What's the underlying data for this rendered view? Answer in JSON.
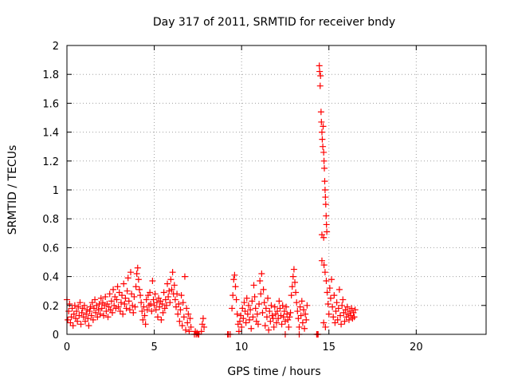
{
  "chart_data": {
    "type": "scatter",
    "title": "Day 317 of 2011, SRMTID for receiver bndy",
    "xlabel": "GPS time / hours",
    "ylabel": "SRMTID / TECUs",
    "xlim": [
      0,
      24
    ],
    "ylim": [
      0,
      2
    ],
    "xticks": [
      0,
      5,
      10,
      15,
      20
    ],
    "yticks": [
      0,
      0.2,
      0.4,
      0.6,
      0.8,
      1,
      1.2,
      1.4,
      1.6,
      1.8,
      2
    ],
    "x_tick_labels": [
      "0",
      "5",
      "10",
      "15",
      "20"
    ],
    "y_tick_labels": [
      "0",
      "0.2",
      "0.4",
      "0.6",
      "0.8",
      "1",
      "1.2",
      "1.4",
      "1.6",
      "1.8",
      "2"
    ],
    "grid": true,
    "marker": "+",
    "series": [
      {
        "name": "SRMTID",
        "color": "#ff0000",
        "points": [
          [
            0.0,
            0.24
          ],
          [
            0.05,
            0.1
          ],
          [
            0.1,
            0.16
          ],
          [
            0.15,
            0.21
          ],
          [
            0.2,
            0.08
          ],
          [
            0.25,
            0.12
          ],
          [
            0.3,
            0.18
          ],
          [
            0.35,
            0.06
          ],
          [
            0.4,
            0.14
          ],
          [
            0.45,
            0.2
          ],
          [
            0.5,
            0.11
          ],
          [
            0.55,
            0.16
          ],
          [
            0.6,
            0.09
          ],
          [
            0.65,
            0.19
          ],
          [
            0.7,
            0.13
          ],
          [
            0.75,
            0.22
          ],
          [
            0.8,
            0.07
          ],
          [
            0.85,
            0.15
          ],
          [
            0.9,
            0.18
          ],
          [
            0.95,
            0.12
          ],
          [
            1.0,
            0.2
          ],
          [
            1.05,
            0.09
          ],
          [
            1.1,
            0.14
          ],
          [
            1.15,
            0.17
          ],
          [
            1.2,
            0.11
          ],
          [
            1.25,
            0.06
          ],
          [
            1.3,
            0.16
          ],
          [
            1.35,
            0.19
          ],
          [
            1.4,
            0.13
          ],
          [
            1.45,
            0.22
          ],
          [
            1.5,
            0.1
          ],
          [
            1.55,
            0.18
          ],
          [
            1.6,
            0.24
          ],
          [
            1.65,
            0.15
          ],
          [
            1.7,
            0.2
          ],
          [
            1.75,
            0.12
          ],
          [
            1.8,
            0.17
          ],
          [
            1.85,
            0.21
          ],
          [
            1.9,
            0.14
          ],
          [
            1.95,
            0.25
          ],
          [
            2.0,
            0.18
          ],
          [
            2.05,
            0.22
          ],
          [
            2.1,
            0.13
          ],
          [
            2.15,
            0.2
          ],
          [
            2.2,
            0.26
          ],
          [
            2.25,
            0.16
          ],
          [
            2.3,
            0.21
          ],
          [
            2.35,
            0.12
          ],
          [
            2.4,
            0.19
          ],
          [
            2.45,
            0.28
          ],
          [
            2.5,
            0.17
          ],
          [
            2.55,
            0.23
          ],
          [
            2.6,
            0.15
          ],
          [
            2.65,
            0.31
          ],
          [
            2.7,
            0.2
          ],
          [
            2.75,
            0.26
          ],
          [
            2.8,
            0.18
          ],
          [
            2.85,
            0.24
          ],
          [
            2.9,
            0.33
          ],
          [
            2.95,
            0.19
          ],
          [
            3.0,
            0.29
          ],
          [
            3.05,
            0.16
          ],
          [
            3.1,
            0.22
          ],
          [
            3.15,
            0.27
          ],
          [
            3.2,
            0.14
          ],
          [
            3.25,
            0.35
          ],
          [
            3.3,
            0.21
          ],
          [
            3.35,
            0.25
          ],
          [
            3.4,
            0.18
          ],
          [
            3.45,
            0.3
          ],
          [
            3.5,
            0.39
          ],
          [
            3.55,
            0.23
          ],
          [
            3.6,
            0.17
          ],
          [
            3.65,
            0.43
          ],
          [
            3.7,
            0.28
          ],
          [
            3.75,
            0.2
          ],
          [
            3.8,
            0.15
          ],
          [
            3.85,
            0.26
          ],
          [
            3.9,
            0.19
          ],
          [
            3.95,
            0.33
          ],
          [
            4.0,
            0.42
          ],
          [
            4.05,
            0.46
          ],
          [
            4.1,
            0.38
          ],
          [
            4.15,
            0.31
          ],
          [
            4.2,
            0.27
          ],
          [
            4.25,
            0.22
          ],
          [
            4.3,
            0.16
          ],
          [
            4.35,
            0.1
          ],
          [
            4.4,
            0.19
          ],
          [
            4.45,
            0.13
          ],
          [
            4.5,
            0.07
          ],
          [
            4.55,
            0.24
          ],
          [
            4.6,
            0.17
          ],
          [
            4.65,
            0.27
          ],
          [
            4.7,
            0.2
          ],
          [
            4.75,
            0.29
          ],
          [
            4.8,
            0.21
          ],
          [
            4.85,
            0.16
          ],
          [
            4.9,
            0.37
          ],
          [
            4.95,
            0.24
          ],
          [
            5.0,
            0.2
          ],
          [
            5.05,
            0.28
          ],
          [
            5.1,
            0.17
          ],
          [
            5.15,
            0.22
          ],
          [
            5.2,
            0.12
          ],
          [
            5.25,
            0.25
          ],
          [
            5.3,
            0.19
          ],
          [
            5.35,
            0.23
          ],
          [
            5.4,
            0.1
          ],
          [
            5.45,
            0.21
          ],
          [
            5.5,
            0.15
          ],
          [
            5.55,
            0.29
          ],
          [
            5.6,
            0.18
          ],
          [
            5.65,
            0.24
          ],
          [
            5.7,
            0.2
          ],
          [
            5.75,
            0.35
          ],
          [
            5.8,
            0.26
          ],
          [
            5.85,
            0.3
          ],
          [
            5.9,
            0.22
          ],
          [
            5.95,
            0.38
          ],
          [
            6.0,
            0.31
          ],
          [
            6.05,
            0.43
          ],
          [
            6.1,
            0.28
          ],
          [
            6.15,
            0.34
          ],
          [
            6.2,
            0.24
          ],
          [
            6.25,
            0.19
          ],
          [
            6.3,
            0.28
          ],
          [
            6.35,
            0.14
          ],
          [
            6.4,
            0.21
          ],
          [
            6.45,
            0.09
          ],
          [
            6.5,
            0.17
          ],
          [
            6.55,
            0.27
          ],
          [
            6.6,
            0.06
          ],
          [
            6.65,
            0.22
          ],
          [
            6.7,
            0.12
          ],
          [
            6.75,
            0.4
          ],
          [
            6.8,
            0.03
          ],
          [
            6.85,
            0.18
          ],
          [
            6.9,
            0.08
          ],
          [
            6.95,
            0.14
          ],
          [
            7.0,
            0.02
          ],
          [
            7.05,
            0.11
          ],
          [
            7.1,
            0.05
          ],
          [
            7.3,
            0.0
          ],
          [
            7.35,
            0.02
          ],
          [
            7.4,
            0.0
          ],
          [
            7.45,
            0.01
          ],
          [
            7.5,
            0.0
          ],
          [
            7.55,
            0.0
          ],
          [
            7.7,
            0.02
          ],
          [
            7.75,
            0.07
          ],
          [
            7.8,
            0.11
          ],
          [
            7.85,
            0.05
          ],
          [
            9.2,
            0.0
          ],
          [
            9.25,
            0.0
          ],
          [
            9.35,
            0.0
          ],
          [
            9.45,
            0.18
          ],
          [
            9.5,
            0.27
          ],
          [
            9.55,
            0.38
          ],
          [
            9.6,
            0.41
          ],
          [
            9.65,
            0.33
          ],
          [
            9.7,
            0.24
          ],
          [
            9.75,
            0.14
          ],
          [
            9.8,
            0.07
          ],
          [
            9.85,
            0.02
          ],
          [
            9.9,
            0.09
          ],
          [
            9.95,
            0.13
          ],
          [
            10.0,
            0.05
          ],
          [
            10.05,
            0.18
          ],
          [
            10.1,
            0.11
          ],
          [
            10.15,
            0.22
          ],
          [
            10.2,
            0.16
          ],
          [
            10.25,
            0.08
          ],
          [
            10.3,
            0.25
          ],
          [
            10.35,
            0.14
          ],
          [
            10.4,
            0.2
          ],
          [
            10.45,
            0.1
          ],
          [
            10.5,
            0.17
          ],
          [
            10.55,
            0.04
          ],
          [
            10.6,
            0.23
          ],
          [
            10.65,
            0.12
          ],
          [
            10.7,
            0.34
          ],
          [
            10.75,
            0.26
          ],
          [
            10.8,
            0.18
          ],
          [
            10.85,
            0.09
          ],
          [
            10.9,
            0.14
          ],
          [
            10.95,
            0.07
          ],
          [
            11.0,
            0.21
          ],
          [
            11.05,
            0.37
          ],
          [
            11.1,
            0.28
          ],
          [
            11.15,
            0.42
          ],
          [
            11.2,
            0.15
          ],
          [
            11.25,
            0.31
          ],
          [
            11.3,
            0.22
          ],
          [
            11.35,
            0.06
          ],
          [
            11.4,
            0.18
          ],
          [
            11.45,
            0.12
          ],
          [
            11.5,
            0.25
          ],
          [
            11.55,
            0.03
          ],
          [
            11.6,
            0.16
          ],
          [
            11.65,
            0.09
          ],
          [
            11.7,
            0.2
          ],
          [
            11.75,
            0.13
          ],
          [
            11.8,
            0.11
          ],
          [
            11.85,
            0.05
          ],
          [
            11.9,
            0.19
          ],
          [
            11.95,
            0.14
          ],
          [
            12.0,
            0.08
          ],
          [
            12.05,
            0.16
          ],
          [
            12.1,
            0.11
          ],
          [
            12.15,
            0.23
          ],
          [
            12.2,
            0.18
          ],
          [
            12.25,
            0.13
          ],
          [
            12.3,
            0.07
          ],
          [
            12.35,
            0.2
          ],
          [
            12.4,
            0.12
          ],
          [
            12.45,
            0.16
          ],
          [
            12.5,
            0.09
          ],
          [
            12.55,
            0.19
          ],
          [
            12.6,
            0.14
          ],
          [
            12.65,
            0.1
          ],
          [
            12.7,
            0.05
          ],
          [
            12.75,
            0.12
          ],
          [
            12.8,
            0.15
          ],
          [
            12.85,
            0.27
          ],
          [
            12.9,
            0.33
          ],
          [
            12.95,
            0.4
          ],
          [
            13.0,
            0.45
          ],
          [
            13.05,
            0.36
          ],
          [
            13.1,
            0.29
          ],
          [
            13.15,
            0.22
          ],
          [
            13.2,
            0.16
          ],
          [
            13.25,
            0.11
          ],
          [
            13.3,
            0.05
          ],
          [
            13.35,
            0.19
          ],
          [
            13.4,
            0.13
          ],
          [
            13.45,
            0.23
          ],
          [
            13.5,
            0.08
          ],
          [
            13.55,
            0.17
          ],
          [
            13.6,
            0.04
          ],
          [
            13.65,
            0.14
          ],
          [
            13.7,
            0.1
          ],
          [
            13.75,
            0.2
          ],
          [
            12.5,
            0.0
          ],
          [
            13.3,
            0.0
          ],
          [
            14.3,
            0.0
          ],
          [
            14.35,
            0.0
          ],
          [
            14.38,
            0.0
          ],
          [
            14.45,
            1.86
          ],
          [
            14.47,
            1.82
          ],
          [
            14.5,
            1.72
          ],
          [
            14.52,
            1.79
          ],
          [
            14.55,
            1.54
          ],
          [
            14.57,
            1.47
          ],
          [
            14.6,
            1.4
          ],
          [
            14.62,
            1.35
          ],
          [
            14.65,
            1.3
          ],
          [
            14.67,
            1.44
          ],
          [
            14.7,
            1.26
          ],
          [
            14.72,
            1.2
          ],
          [
            14.74,
            1.15
          ],
          [
            14.76,
            1.06
          ],
          [
            14.78,
            1.0
          ],
          [
            14.8,
            0.95
          ],
          [
            14.82,
            0.9
          ],
          [
            14.84,
            0.82
          ],
          [
            14.86,
            0.76
          ],
          [
            14.88,
            0.71
          ],
          [
            14.6,
            0.69
          ],
          [
            14.7,
            0.67
          ],
          [
            14.6,
            0.51
          ],
          [
            14.72,
            0.48
          ],
          [
            14.78,
            0.43
          ],
          [
            14.85,
            0.37
          ],
          [
            14.9,
            0.29
          ],
          [
            14.95,
            0.21
          ],
          [
            15.0,
            0.14
          ],
          [
            14.7,
            0.08
          ],
          [
            14.8,
            0.05
          ],
          [
            15.05,
            0.32
          ],
          [
            15.1,
            0.25
          ],
          [
            15.15,
            0.38
          ],
          [
            15.2,
            0.19
          ],
          [
            15.25,
            0.12
          ],
          [
            15.3,
            0.27
          ],
          [
            15.35,
            0.08
          ],
          [
            15.4,
            0.16
          ],
          [
            15.45,
            0.22
          ],
          [
            15.5,
            0.1
          ],
          [
            15.55,
            0.18
          ],
          [
            15.6,
            0.31
          ],
          [
            15.65,
            0.13
          ],
          [
            15.7,
            0.07
          ],
          [
            15.75,
            0.2
          ],
          [
            15.8,
            0.24
          ],
          [
            15.85,
            0.15
          ],
          [
            15.9,
            0.09
          ],
          [
            15.95,
            0.17
          ],
          [
            16.0,
            0.12
          ],
          [
            16.05,
            0.19
          ],
          [
            16.1,
            0.14
          ],
          [
            16.15,
            0.1
          ],
          [
            16.2,
            0.16
          ],
          [
            16.25,
            0.13
          ],
          [
            16.3,
            0.18
          ],
          [
            16.35,
            0.11
          ],
          [
            16.4,
            0.15
          ],
          [
            16.45,
            0.12
          ],
          [
            16.5,
            0.17
          ]
        ]
      }
    ]
  }
}
